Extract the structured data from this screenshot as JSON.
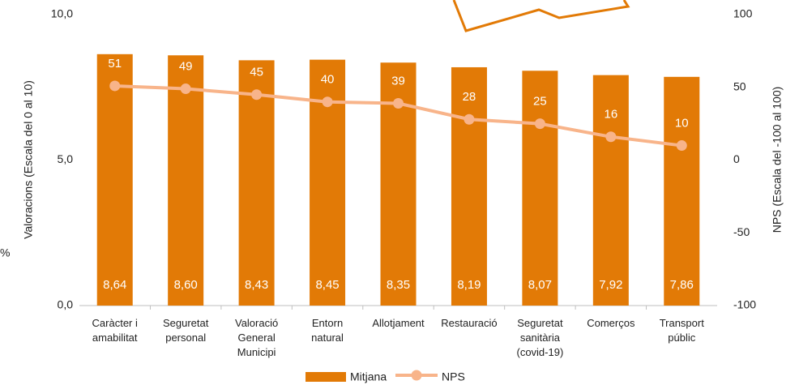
{
  "chart_data": {
    "type": "bar_line",
    "categories": [
      "Caràcter i\namabilitat",
      "Seguretat\npersonal",
      "Valoració\nGeneral\nMunicipi",
      "Entorn\nnatural",
      "Allotjament",
      "Restauració",
      "Seguretat\nsanitària\n(covid-19)",
      "Comerços",
      "Transport\npúblic"
    ],
    "series": [
      {
        "name": "Mitjana",
        "type": "bar",
        "color": "#e27a06",
        "values": [
          8.64,
          8.6,
          8.43,
          8.45,
          8.35,
          8.19,
          8.07,
          7.92,
          7.86
        ],
        "value_labels": [
          "8,64",
          "8,60",
          "8,43",
          "8,45",
          "8,35",
          "8,19",
          "8,07",
          "7,92",
          "7,86"
        ]
      },
      {
        "name": "NPS",
        "type": "line",
        "axis": "y2",
        "color": "#f8b48a",
        "values": [
          51,
          49,
          45,
          40,
          39,
          28,
          25,
          16,
          10
        ]
      }
    ],
    "ylabel": "Valoracions (Escala  del 0 al 10)",
    "y2label": "NPS (Escala  del -100 al 100)",
    "ylim": [
      0,
      10
    ],
    "yticks": [
      {
        "value": 0,
        "label": "0,0"
      },
      {
        "value": 5,
        "label": "5,0"
      },
      {
        "value": 10,
        "label": "10,0"
      }
    ],
    "y2lim": [
      -100,
      100
    ],
    "y2ticks": [
      -100,
      -50,
      0,
      50,
      100
    ],
    "annotation": "%",
    "legend": "bottom"
  }
}
